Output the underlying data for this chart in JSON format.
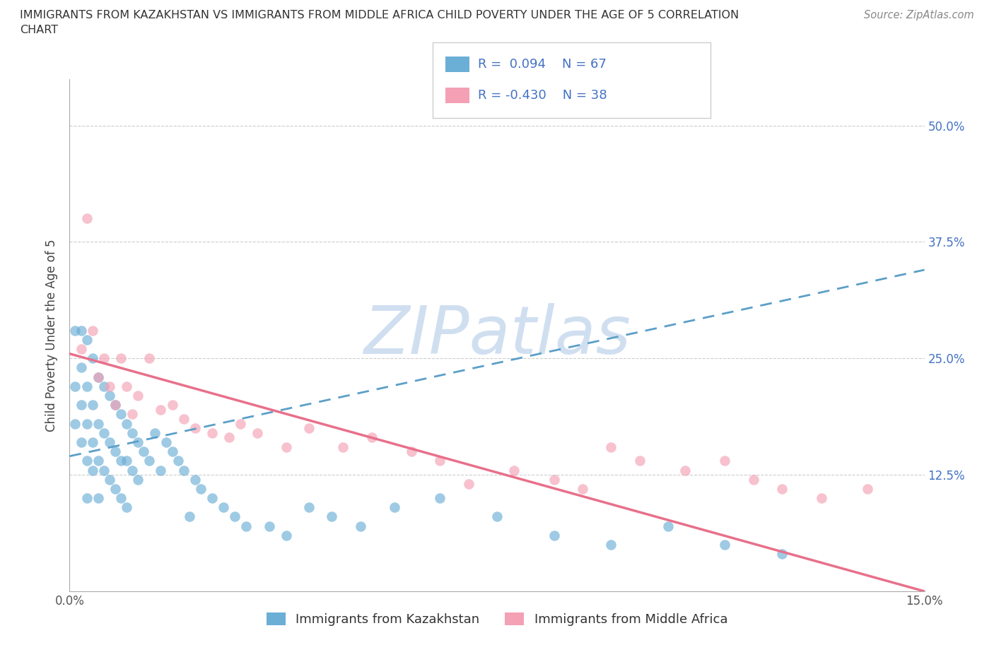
{
  "title_line1": "IMMIGRANTS FROM KAZAKHSTAN VS IMMIGRANTS FROM MIDDLE AFRICA CHILD POVERTY UNDER THE AGE OF 5 CORRELATION",
  "title_line2": "CHART",
  "source": "Source: ZipAtlas.com",
  "ylabel": "Child Poverty Under the Age of 5",
  "legend_label1": "Immigrants from Kazakhstan",
  "legend_label2": "Immigrants from Middle Africa",
  "R1": 0.094,
  "N1": 67,
  "R2": -0.43,
  "N2": 38,
  "color1": "#6baed6",
  "color2": "#f4a0b5",
  "trend1_color": "#5b9fc8",
  "trend2_color": "#e8708a",
  "watermark": "ZIPatlas",
  "watermark_color": "#d0dff0",
  "watermark_fontsize": 68,
  "xmin": 0.0,
  "xmax": 0.15,
  "ymin": 0.0,
  "ymax": 0.55,
  "ytick_positions": [
    0.0,
    0.125,
    0.25,
    0.375,
    0.5
  ],
  "ytick_labels_right": [
    "",
    "12.5%",
    "25.0%",
    "37.5%",
    "50.0%"
  ],
  "xtick_positions": [
    0.0,
    0.025,
    0.05,
    0.075,
    0.1,
    0.125,
    0.15
  ],
  "xtick_labels": [
    "0.0%",
    "",
    "",
    "",
    "",
    "",
    "15.0%"
  ],
  "trend1_x0": 0.0,
  "trend1_y0": 0.145,
  "trend1_x1": 0.15,
  "trend1_y1": 0.345,
  "trend2_x0": 0.0,
  "trend2_y0": 0.255,
  "trend2_x1": 0.15,
  "trend2_y1": 0.0,
  "kaz_x": [
    0.001,
    0.001,
    0.001,
    0.002,
    0.002,
    0.002,
    0.002,
    0.003,
    0.003,
    0.003,
    0.003,
    0.003,
    0.004,
    0.004,
    0.004,
    0.004,
    0.005,
    0.005,
    0.005,
    0.005,
    0.006,
    0.006,
    0.006,
    0.007,
    0.007,
    0.007,
    0.008,
    0.008,
    0.008,
    0.009,
    0.009,
    0.009,
    0.01,
    0.01,
    0.01,
    0.011,
    0.011,
    0.012,
    0.012,
    0.013,
    0.014,
    0.015,
    0.016,
    0.017,
    0.018,
    0.019,
    0.02,
    0.021,
    0.022,
    0.023,
    0.025,
    0.027,
    0.029,
    0.031,
    0.035,
    0.038,
    0.042,
    0.046,
    0.051,
    0.057,
    0.065,
    0.075,
    0.085,
    0.095,
    0.105,
    0.115,
    0.125
  ],
  "kaz_y": [
    0.28,
    0.18,
    0.22,
    0.24,
    0.2,
    0.16,
    0.28,
    0.27,
    0.22,
    0.18,
    0.14,
    0.1,
    0.25,
    0.2,
    0.16,
    0.13,
    0.23,
    0.18,
    0.14,
    0.1,
    0.22,
    0.17,
    0.13,
    0.21,
    0.16,
    0.12,
    0.2,
    0.15,
    0.11,
    0.19,
    0.14,
    0.1,
    0.18,
    0.14,
    0.09,
    0.17,
    0.13,
    0.16,
    0.12,
    0.15,
    0.14,
    0.17,
    0.13,
    0.16,
    0.15,
    0.14,
    0.13,
    0.08,
    0.12,
    0.11,
    0.1,
    0.09,
    0.08,
    0.07,
    0.07,
    0.06,
    0.09,
    0.08,
    0.07,
    0.09,
    0.1,
    0.08,
    0.06,
    0.05,
    0.07,
    0.05,
    0.04
  ],
  "maf_x": [
    0.002,
    0.003,
    0.004,
    0.005,
    0.006,
    0.007,
    0.008,
    0.009,
    0.01,
    0.011,
    0.012,
    0.014,
    0.016,
    0.018,
    0.02,
    0.022,
    0.025,
    0.028,
    0.03,
    0.033,
    0.038,
    0.042,
    0.048,
    0.053,
    0.06,
    0.065,
    0.07,
    0.078,
    0.085,
    0.09,
    0.095,
    0.1,
    0.108,
    0.115,
    0.12,
    0.125,
    0.132,
    0.14
  ],
  "maf_y": [
    0.26,
    0.4,
    0.28,
    0.23,
    0.25,
    0.22,
    0.2,
    0.25,
    0.22,
    0.19,
    0.21,
    0.25,
    0.195,
    0.2,
    0.185,
    0.175,
    0.17,
    0.165,
    0.18,
    0.17,
    0.155,
    0.175,
    0.155,
    0.165,
    0.15,
    0.14,
    0.115,
    0.13,
    0.12,
    0.11,
    0.155,
    0.14,
    0.13,
    0.14,
    0.12,
    0.11,
    0.1,
    0.11
  ]
}
